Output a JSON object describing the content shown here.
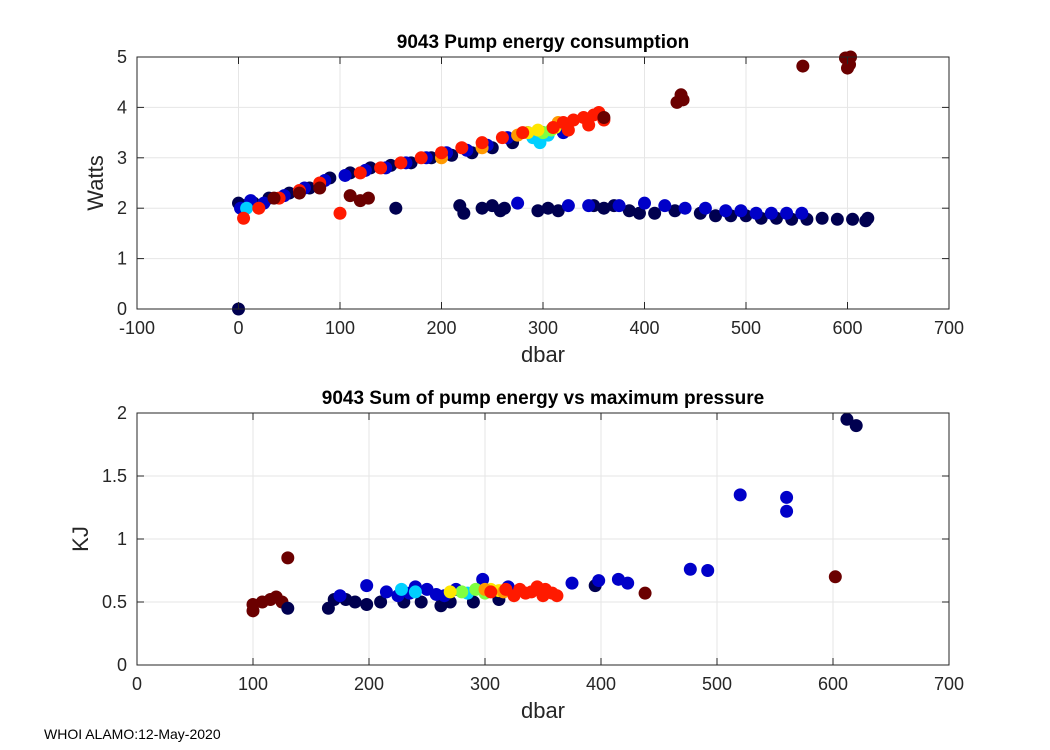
{
  "footer": "WHOI ALAMO:12-May-2020",
  "colors": {
    "jet": [
      "#00008f",
      "#0000ff",
      "#0080ff",
      "#00ffff",
      "#80ff80",
      "#ffff00",
      "#ff8000",
      "#ff0000",
      "#800000"
    ],
    "navy": "#000050",
    "darkred": "#6b0000",
    "grid": "#e6e6e6",
    "axis": "#262626"
  },
  "chart_data": [
    {
      "type": "scatter",
      "title": "9043 Pump energy consumption",
      "xlabel": "dbar",
      "ylabel": "Watts",
      "xlim": [
        -100,
        700
      ],
      "ylim": [
        0,
        5
      ],
      "xticks": [
        -100,
        0,
        100,
        200,
        300,
        400,
        500,
        600,
        700
      ],
      "yticks": [
        0,
        1,
        2,
        3,
        4,
        5
      ],
      "grid": true,
      "series": [
        {
          "name": "navy",
          "color": "#000050",
          "points": [
            [
              0,
              0
            ],
            [
              0,
              2.1
            ],
            [
              5,
              2.05
            ],
            [
              15,
              2.1
            ],
            [
              30,
              2.2
            ],
            [
              50,
              2.3
            ],
            [
              70,
              2.4
            ],
            [
              90,
              2.6
            ],
            [
              110,
              2.7
            ],
            [
              130,
              2.8
            ],
            [
              150,
              2.85
            ],
            [
              170,
              2.9
            ],
            [
              190,
              3.0
            ],
            [
              210,
              3.05
            ],
            [
              230,
              3.1
            ],
            [
              250,
              3.2
            ],
            [
              270,
              3.3
            ],
            [
              300,
              3.5
            ],
            [
              155,
              2.0
            ],
            [
              218,
              2.05
            ],
            [
              222,
              1.9
            ],
            [
              240,
              2.0
            ],
            [
              250,
              2.05
            ],
            [
              258,
              1.95
            ],
            [
              262,
              2.0
            ],
            [
              295,
              1.95
            ],
            [
              305,
              2.0
            ],
            [
              315,
              1.95
            ],
            [
              350,
              2.05
            ],
            [
              360,
              2.0
            ],
            [
              370,
              2.05
            ],
            [
              385,
              1.95
            ],
            [
              395,
              1.9
            ],
            [
              410,
              1.9
            ],
            [
              430,
              1.95
            ],
            [
              455,
              1.9
            ],
            [
              470,
              1.85
            ],
            [
              485,
              1.85
            ],
            [
              500,
              1.85
            ],
            [
              515,
              1.8
            ],
            [
              530,
              1.8
            ],
            [
              545,
              1.78
            ],
            [
              560,
              1.78
            ],
            [
              575,
              1.8
            ],
            [
              590,
              1.78
            ],
            [
              605,
              1.78
            ],
            [
              618,
              1.75
            ],
            [
              620,
              1.8
            ]
          ]
        },
        {
          "name": "blue",
          "color": "#0000c8",
          "points": [
            [
              2,
              2.0
            ],
            [
              12,
              2.15
            ],
            [
              25,
              2.1
            ],
            [
              45,
              2.25
            ],
            [
              65,
              2.4
            ],
            [
              85,
              2.55
            ],
            [
              105,
              2.65
            ],
            [
              125,
              2.75
            ],
            [
              145,
              2.8
            ],
            [
              165,
              2.9
            ],
            [
              185,
              3.0
            ],
            [
              205,
              3.1
            ],
            [
              225,
              3.15
            ],
            [
              245,
              3.25
            ],
            [
              265,
              3.4
            ],
            [
              285,
              3.5
            ],
            [
              320,
              3.5
            ],
            [
              275,
              2.1
            ],
            [
              325,
              2.05
            ],
            [
              345,
              2.05
            ],
            [
              375,
              2.05
            ],
            [
              400,
              2.1
            ],
            [
              420,
              2.05
            ],
            [
              440,
              2.0
            ],
            [
              460,
              2.0
            ],
            [
              480,
              1.95
            ],
            [
              495,
              1.95
            ],
            [
              510,
              1.9
            ],
            [
              525,
              1.9
            ],
            [
              540,
              1.9
            ],
            [
              555,
              1.9
            ]
          ]
        },
        {
          "name": "cyan",
          "color": "#00d0ff",
          "points": [
            [
              8,
              2.0
            ],
            [
              290,
              3.4
            ],
            [
              305,
              3.45
            ],
            [
              297,
              3.3
            ]
          ]
        },
        {
          "name": "green",
          "color": "#80ff40",
          "points": [
            [
              300,
              3.5
            ],
            [
              308,
              3.55
            ]
          ]
        },
        {
          "name": "yellow",
          "color": "#ffe600",
          "points": [
            [
              285,
              3.5
            ],
            [
              295,
              3.55
            ],
            [
              312,
              3.6
            ]
          ]
        },
        {
          "name": "orange",
          "color": "#ff9900",
          "points": [
            [
              200,
              3.0
            ],
            [
              240,
              3.2
            ],
            [
              275,
              3.45
            ],
            [
              315,
              3.7
            ]
          ]
        },
        {
          "name": "red",
          "color": "#ff1a00",
          "points": [
            [
              5,
              1.8
            ],
            [
              20,
              2.0
            ],
            [
              40,
              2.2
            ],
            [
              60,
              2.35
            ],
            [
              80,
              2.5
            ],
            [
              100,
              1.9
            ],
            [
              120,
              2.7
            ],
            [
              140,
              2.8
            ],
            [
              160,
              2.9
            ],
            [
              180,
              3.0
            ],
            [
              200,
              3.1
            ],
            [
              220,
              3.2
            ],
            [
              240,
              3.3
            ],
            [
              260,
              3.4
            ],
            [
              280,
              3.5
            ],
            [
              310,
              3.6
            ],
            [
              320,
              3.7
            ],
            [
              330,
              3.75
            ],
            [
              340,
              3.8
            ],
            [
              350,
              3.85
            ],
            [
              355,
              3.9
            ],
            [
              325,
              3.55
            ],
            [
              345,
              3.65
            ],
            [
              360,
              3.75
            ]
          ]
        },
        {
          "name": "darkred",
          "color": "#6b0000",
          "points": [
            [
              35,
              2.2
            ],
            [
              60,
              2.3
            ],
            [
              80,
              2.4
            ],
            [
              110,
              2.25
            ],
            [
              120,
              2.15
            ],
            [
              128,
              2.2
            ],
            [
              360,
              3.8
            ],
            [
              432,
              4.1
            ],
            [
              436,
              4.25
            ],
            [
              438,
              4.15
            ],
            [
              556,
              4.82
            ],
            [
              598,
              4.98
            ],
            [
              603,
              5.0
            ],
            [
              600,
              4.78
            ],
            [
              602,
              4.85
            ]
          ]
        }
      ]
    },
    {
      "type": "scatter",
      "title": "9043 Sum of pump energy vs maximum pressure",
      "xlabel": "dbar",
      "ylabel": "KJ",
      "xlim": [
        0,
        700
      ],
      "ylim": [
        0,
        2
      ],
      "xticks": [
        0,
        100,
        200,
        300,
        400,
        500,
        600,
        700
      ],
      "yticks": [
        "0",
        "0.5",
        "1",
        "1.5",
        "2"
      ],
      "ytick_values": [
        0,
        0.5,
        1,
        1.5,
        2
      ],
      "grid": true,
      "series": [
        {
          "name": "darkred",
          "color": "#6b0000",
          "points": [
            [
              100,
              0.43
            ],
            [
              100,
              0.48
            ],
            [
              108,
              0.5
            ],
            [
              115,
              0.52
            ],
            [
              120,
              0.54
            ],
            [
              125,
              0.5
            ],
            [
              130,
              0.85
            ],
            [
              438,
              0.57
            ],
            [
              602,
              0.7
            ]
          ]
        },
        {
          "name": "navy",
          "color": "#000050",
          "points": [
            [
              130,
              0.45
            ],
            [
              165,
              0.45
            ],
            [
              170,
              0.52
            ],
            [
              180,
              0.52
            ],
            [
              188,
              0.5
            ],
            [
              198,
              0.48
            ],
            [
              210,
              0.5
            ],
            [
              230,
              0.5
            ],
            [
              245,
              0.5
            ],
            [
              262,
              0.47
            ],
            [
              270,
              0.5
            ],
            [
              290,
              0.5
            ],
            [
              312,
              0.52
            ],
            [
              395,
              0.63
            ],
            [
              612,
              1.95
            ],
            [
              620,
              1.9
            ]
          ]
        },
        {
          "name": "blue",
          "color": "#0000c8",
          "points": [
            [
              175,
              0.55
            ],
            [
              198,
              0.63
            ],
            [
              215,
              0.58
            ],
            [
              225,
              0.55
            ],
            [
              235,
              0.57
            ],
            [
              240,
              0.62
            ],
            [
              250,
              0.6
            ],
            [
              258,
              0.56
            ],
            [
              265,
              0.55
            ],
            [
              275,
              0.6
            ],
            [
              298,
              0.68
            ],
            [
              320,
              0.62
            ],
            [
              375,
              0.65
            ],
            [
              398,
              0.67
            ],
            [
              415,
              0.68
            ],
            [
              423,
              0.65
            ],
            [
              477,
              0.76
            ],
            [
              492,
              0.75
            ],
            [
              520,
              1.35
            ],
            [
              560,
              1.33
            ],
            [
              560,
              1.22
            ]
          ]
        },
        {
          "name": "cyan",
          "color": "#00d0ff",
          "points": [
            [
              228,
              0.6
            ],
            [
              240,
              0.58
            ],
            [
              285,
              0.57
            ]
          ]
        },
        {
          "name": "green",
          "color": "#80ff40",
          "points": [
            [
              280,
              0.58
            ],
            [
              292,
              0.6
            ],
            [
              300,
              0.57
            ]
          ]
        },
        {
          "name": "yellow",
          "color": "#ffe600",
          "points": [
            [
              270,
              0.58
            ],
            [
              305,
              0.6
            ],
            [
              312,
              0.59
            ]
          ]
        },
        {
          "name": "orange",
          "color": "#ff9900",
          "points": [
            [
              300,
              0.6
            ],
            [
              316,
              0.58
            ]
          ]
        },
        {
          "name": "red",
          "color": "#ff1a00",
          "points": [
            [
              305,
              0.58
            ],
            [
              318,
              0.6
            ],
            [
              325,
              0.55
            ],
            [
              330,
              0.6
            ],
            [
              335,
              0.57
            ],
            [
              340,
              0.58
            ],
            [
              345,
              0.62
            ],
            [
              350,
              0.55
            ],
            [
              352,
              0.6
            ],
            [
              358,
              0.57
            ],
            [
              362,
              0.55
            ]
          ]
        }
      ]
    }
  ]
}
